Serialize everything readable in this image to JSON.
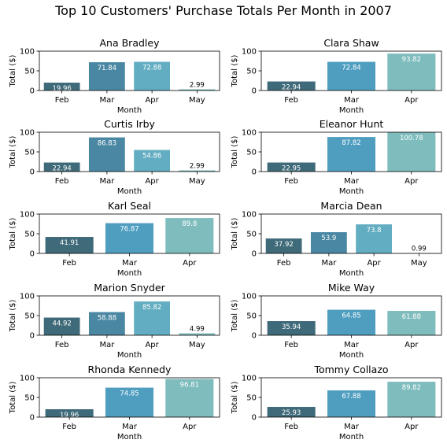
{
  "figure": {
    "title": "Top 10 Customers' Purchase Totals Per Month in 2007"
  },
  "chart_data": [
    {
      "type": "bar",
      "title": "Ana Bradley",
      "categories": [
        "Feb",
        "Mar",
        "Apr",
        "May"
      ],
      "values": [
        19.96,
        71.84,
        72.88,
        2.99
      ],
      "value_labels": [
        "19.96",
        "71.84",
        "72.88",
        "2.99"
      ],
      "colors": [
        "#3f6a79",
        "#4a87a3",
        "#62adc1",
        "#7ebcbd"
      ],
      "xlabel": "Month",
      "ylabel": "Total ($)",
      "ylim": [
        0,
        100
      ],
      "yticks": [
        "0",
        "50",
        "100"
      ]
    },
    {
      "type": "bar",
      "title": "Clara Shaw",
      "categories": [
        "Feb",
        "Mar",
        "Apr"
      ],
      "values": [
        22.94,
        72.84,
        93.82
      ],
      "value_labels": [
        "22.94",
        "72.84",
        "93.82"
      ],
      "colors": [
        "#3f6a79",
        "#4f9ec0",
        "#7ebcbd"
      ],
      "xlabel": "Month",
      "ylabel": "Total ($)",
      "ylim": [
        0,
        100
      ],
      "yticks": [
        "0",
        "50",
        "100"
      ]
    },
    {
      "type": "bar",
      "title": "Curtis Irby",
      "categories": [
        "Feb",
        "Mar",
        "Apr",
        "May"
      ],
      "values": [
        22.94,
        86.83,
        54.86,
        2.99
      ],
      "value_labels": [
        "22.94",
        "86.83",
        "54.86",
        "2.99"
      ],
      "colors": [
        "#3f6a79",
        "#4a87a3",
        "#62adc1",
        "#7ebcbd"
      ],
      "xlabel": "Month",
      "ylabel": "Total ($)",
      "ylim": [
        0,
        100
      ],
      "yticks": [
        "0",
        "50",
        "100"
      ]
    },
    {
      "type": "bar",
      "title": "Eleanor Hunt",
      "categories": [
        "Feb",
        "Mar",
        "Apr"
      ],
      "values": [
        22.95,
        87.82,
        100.78
      ],
      "value_labels": [
        "22.95",
        "87.82",
        "100.78"
      ],
      "colors": [
        "#3f6a79",
        "#4f9ec0",
        "#7ebcbd"
      ],
      "xlabel": "Month",
      "ylabel": "Total ($)",
      "ylim": [
        0,
        100
      ],
      "yticks": [
        "0",
        "50",
        "100"
      ]
    },
    {
      "type": "bar",
      "title": "Karl Seal",
      "categories": [
        "Feb",
        "Mar",
        "Apr"
      ],
      "values": [
        41.91,
        76.87,
        89.8
      ],
      "value_labels": [
        "41.91",
        "76.87",
        "89.8"
      ],
      "colors": [
        "#3f6a79",
        "#4f9ec0",
        "#7ebcbd"
      ],
      "xlabel": "Month",
      "ylabel": "Total ($)",
      "ylim": [
        0,
        100
      ],
      "yticks": [
        "0",
        "50",
        "100"
      ]
    },
    {
      "type": "bar",
      "title": "Marcia Dean",
      "categories": [
        "Feb",
        "Mar",
        "Apr",
        "May"
      ],
      "values": [
        37.92,
        53.9,
        73.8,
        0.99
      ],
      "value_labels": [
        "37.92",
        "53.9",
        "73.8",
        "0.99"
      ],
      "colors": [
        "#3f6a79",
        "#4a87a3",
        "#62adc1",
        "#7ebcbd"
      ],
      "xlabel": "Month",
      "ylabel": "Total ($)",
      "ylim": [
        0,
        100
      ],
      "yticks": [
        "0",
        "50",
        "100"
      ]
    },
    {
      "type": "bar",
      "title": "Marion Snyder",
      "categories": [
        "Feb",
        "Mar",
        "Apr",
        "May"
      ],
      "values": [
        44.92,
        58.88,
        85.82,
        4.99
      ],
      "value_labels": [
        "44.92",
        "58.88",
        "85.82",
        "4.99"
      ],
      "colors": [
        "#3f6a79",
        "#4a87a3",
        "#62adc1",
        "#7ebcbd"
      ],
      "xlabel": "Month",
      "ylabel": "Total ($)",
      "ylim": [
        0,
        100
      ],
      "yticks": [
        "0",
        "50",
        "100"
      ]
    },
    {
      "type": "bar",
      "title": "Mike Way",
      "categories": [
        "Feb",
        "Mar",
        "Apr"
      ],
      "values": [
        35.94,
        64.85,
        61.88
      ],
      "value_labels": [
        "35.94",
        "64.85",
        "61.88"
      ],
      "colors": [
        "#3f6a79",
        "#4f9ec0",
        "#7ebcbd"
      ],
      "xlabel": "Month",
      "ylabel": "Total ($)",
      "ylim": [
        0,
        100
      ],
      "yticks": [
        "0",
        "50",
        "100"
      ]
    },
    {
      "type": "bar",
      "title": "Rhonda Kennedy",
      "categories": [
        "Feb",
        "Mar",
        "Apr"
      ],
      "values": [
        19.96,
        74.85,
        96.81
      ],
      "value_labels": [
        "19.96",
        "74.85",
        "96.81"
      ],
      "colors": [
        "#3f6a79",
        "#4f9ec0",
        "#7ebcbd"
      ],
      "xlabel": "Month",
      "ylabel": "Total ($)",
      "ylim": [
        0,
        100
      ],
      "yticks": [
        "0",
        "50",
        "100"
      ]
    },
    {
      "type": "bar",
      "title": "Tommy Collazo",
      "categories": [
        "Feb",
        "Mar",
        "Apr"
      ],
      "values": [
        25.93,
        67.88,
        89.82
      ],
      "value_labels": [
        "25.93",
        "67.88",
        "89.82"
      ],
      "colors": [
        "#3f6a79",
        "#4f9ec0",
        "#7ebcbd"
      ],
      "xlabel": "Month",
      "ylabel": "Total ($)",
      "ylim": [
        0,
        100
      ],
      "yticks": [
        "0",
        "50",
        "100"
      ]
    }
  ]
}
